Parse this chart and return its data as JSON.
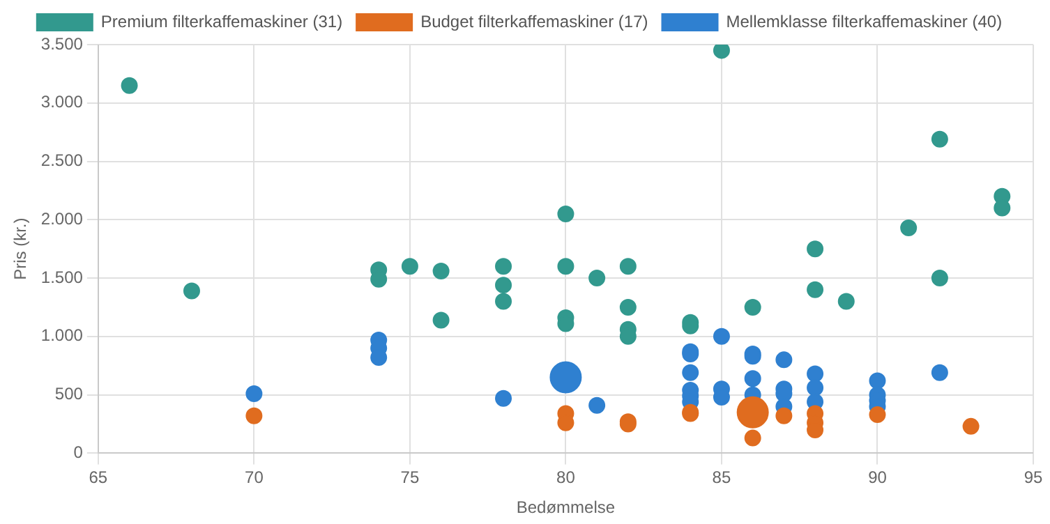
{
  "chart_data": {
    "type": "bubble",
    "xlabel": "Bedømmelse",
    "ylabel": "Pris (kr.)",
    "xlim": [
      65,
      95
    ],
    "xticks": [
      65,
      70,
      75,
      80,
      85,
      90,
      95
    ],
    "ylim": [
      0,
      3500
    ],
    "yticks": [
      0,
      500,
      {
        "value": 1000,
        "label": "1.000"
      },
      {
        "value": 1500,
        "label": "1.500"
      },
      {
        "value": 2000,
        "label": "2.000"
      },
      {
        "value": 2500,
        "label": "2.500"
      },
      {
        "value": 3000,
        "label": "3.000"
      },
      {
        "value": 3500,
        "label": "3.500"
      }
    ],
    "grid": true,
    "legend": "top",
    "marker": "circle",
    "series": [
      {
        "name": "Premium filterkaffemaskiner (31)",
        "color": "#32998e",
        "x": [
          66,
          68,
          74,
          74,
          75,
          76,
          76,
          78,
          78,
          78,
          80,
          80,
          80,
          80,
          81,
          82,
          82,
          82,
          82,
          84,
          84,
          85,
          86,
          88,
          88,
          89,
          91,
          92,
          92,
          94,
          94
        ],
        "values": [
          3150,
          1390,
          1570,
          1490,
          1600,
          1560,
          1140,
          1600,
          1440,
          1300,
          2050,
          1600,
          1160,
          1110,
          1500,
          1600,
          1250,
          1060,
          1000,
          1120,
          1090,
          3450,
          1250,
          1750,
          1400,
          1300,
          1930,
          2690,
          1500,
          2200,
          2100
        ],
        "sizes": [
          0.25,
          0.25,
          0.25,
          0.25,
          0.25,
          0.25,
          0.25,
          0.25,
          0.25,
          0.25,
          0.25,
          0.25,
          0.25,
          0.25,
          0.25,
          0.25,
          0.25,
          0.25,
          0.25,
          0.25,
          0.25,
          0.25,
          0.25,
          0.25,
          0.25,
          0.25,
          0.25,
          0.25,
          0.25,
          0.25,
          0.25
        ]
      },
      {
        "name": "Budget filterkaffemaskiner (17)",
        "color": "#e06c1f",
        "x": [
          70,
          80,
          80,
          82,
          82,
          84,
          84,
          86,
          86,
          87,
          88,
          88,
          88,
          90,
          93
        ],
        "values": [
          320,
          340,
          260,
          270,
          250,
          350,
          340,
          350,
          130,
          320,
          340,
          260,
          200,
          330,
          230
        ],
        "sizes": [
          0.25,
          0.25,
          0.25,
          0.25,
          0.25,
          0.25,
          0.25,
          1,
          0.25,
          0.25,
          0.25,
          0.25,
          0.25,
          0.25,
          0.25
        ]
      },
      {
        "name": "Mellemklasse filterkaffemaskiner (40)",
        "color": "#2f80d0",
        "x": [
          70,
          74,
          74,
          74,
          78,
          80,
          81,
          84,
          84,
          84,
          84,
          84,
          84,
          85,
          85,
          85,
          86,
          86,
          86,
          86,
          87,
          87,
          87,
          87,
          88,
          88,
          88,
          90,
          90,
          90,
          90,
          92
        ],
        "values": [
          510,
          970,
          900,
          820,
          470,
          650,
          410,
          870,
          850,
          690,
          540,
          490,
          440,
          1000,
          550,
          480,
          850,
          830,
          640,
          500,
          800,
          550,
          510,
          400,
          680,
          560,
          440,
          620,
          500,
          450,
          400,
          690
        ],
        "sizes": [
          0.25,
          0.25,
          0.25,
          0.25,
          0.25,
          1,
          0.25,
          0.25,
          0.25,
          0.25,
          0.25,
          0.25,
          0.25,
          0.25,
          0.25,
          0.25,
          0.25,
          0.25,
          0.25,
          0.25,
          0.25,
          0.25,
          0.25,
          0.25,
          0.25,
          0.25,
          0.25,
          0.25,
          0.25,
          0.25,
          0.25,
          0.25
        ]
      }
    ]
  }
}
